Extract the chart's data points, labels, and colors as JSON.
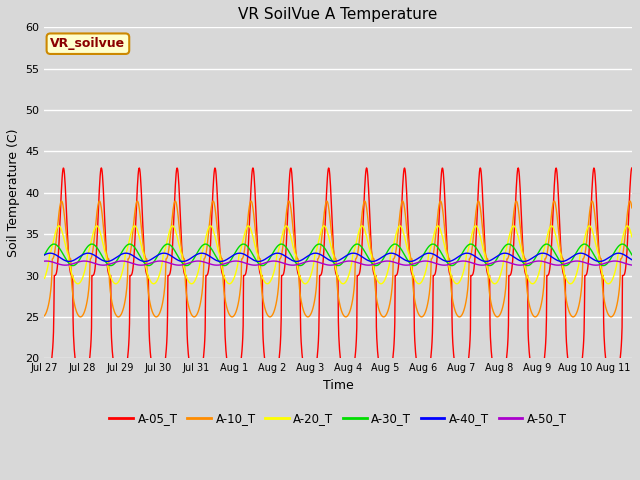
{
  "title": "VR SoilVue A Temperature",
  "xlabel": "Time",
  "ylabel": "Soil Temperature (C)",
  "ylim": [
    20,
    60
  ],
  "yticks": [
    20,
    25,
    30,
    35,
    40,
    45,
    50,
    55,
    60
  ],
  "background_color": "#d8d8d8",
  "plot_bg_color": "#d8d8d8",
  "grid_color": "#ffffff",
  "legend_label": "VR_soilvue",
  "series": [
    {
      "label": "A-05_T",
      "color": "#ff0000"
    },
    {
      "label": "A-10_T",
      "color": "#ff8c00"
    },
    {
      "label": "A-20_T",
      "color": "#ffff00"
    },
    {
      "label": "A-30_T",
      "color": "#00dd00"
    },
    {
      "label": "A-40_T",
      "color": "#0000ff"
    },
    {
      "label": "A-50_T",
      "color": "#aa00cc"
    }
  ],
  "date_labels": [
    "Jul 27",
    "Jul 28",
    "Jul 29",
    "Jul 30",
    "Jul 31",
    "Aug 1",
    "Aug 2",
    "Aug 3",
    "Aug 4",
    "Aug 5",
    "Aug 6",
    "Aug 7",
    "Aug 8",
    "Aug 9",
    "Aug 10",
    "Aug 11"
  ],
  "n_points": 1500,
  "n_days": 15.5,
  "base_temps": [
    30.0,
    32.0,
    32.5,
    32.5,
    32.2,
    31.5
  ],
  "amplitudes": [
    13.0,
    7.0,
    3.5,
    1.3,
    0.5,
    0.25
  ],
  "phase_shifts": [
    0.0,
    0.05,
    0.12,
    0.25,
    0.35,
    0.45
  ],
  "peak_sharpness": [
    4.0,
    2.5,
    1.5,
    1.0,
    1.0,
    1.0
  ]
}
